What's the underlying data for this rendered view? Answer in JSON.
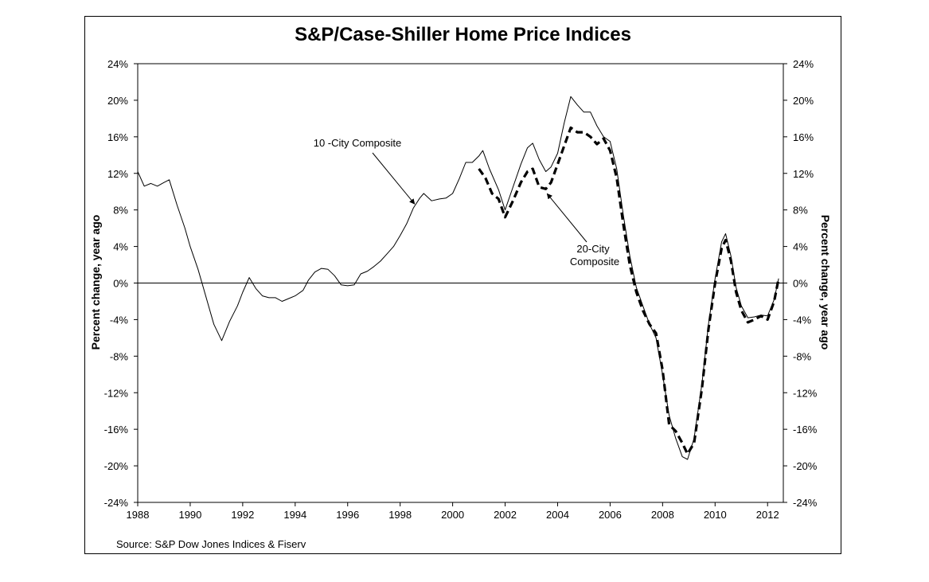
{
  "chart_data": {
    "type": "line",
    "title": "S&P/Case-Shiller Home Price Indices",
    "source": "Source: S&P Dow Jones Indices & Fiserv",
    "ylabel_left": "Percent change, year ago",
    "ylabel_right": "Percent change, year ago",
    "ylim": [
      -24,
      24
    ],
    "xlim": [
      1988,
      2012.6
    ],
    "y_ticks": [
      "24%",
      "20%",
      "16%",
      "12%",
      "8%",
      "4%",
      "0%",
      "-4%",
      "-8%",
      "-12%",
      "-16%",
      "-20%",
      "-24%"
    ],
    "y_tick_values": [
      24,
      20,
      16,
      12,
      8,
      4,
      0,
      -4,
      -8,
      -12,
      -16,
      -20,
      -24
    ],
    "x_ticks": [
      "1988",
      "1990",
      "1992",
      "1994",
      "1996",
      "1998",
      "2000",
      "2002",
      "2004",
      "2006",
      "2008",
      "2010",
      "2012"
    ],
    "x_tick_values": [
      1988,
      1990,
      1992,
      1994,
      1996,
      1998,
      2000,
      2002,
      2004,
      2006,
      2008,
      2010,
      2012
    ],
    "zero_line": true,
    "grid": false,
    "series": [
      {
        "name": "10 -City Composite",
        "style": "solid",
        "color": "#000000",
        "points": [
          [
            1988.0,
            12.2
          ],
          [
            1988.25,
            10.6
          ],
          [
            1988.5,
            10.9
          ],
          [
            1988.75,
            10.6
          ],
          [
            1989.0,
            11.0
          ],
          [
            1989.2,
            11.3
          ],
          [
            1989.5,
            8.5
          ],
          [
            1989.8,
            6.0
          ],
          [
            1990.0,
            4.0
          ],
          [
            1990.3,
            1.5
          ],
          [
            1990.6,
            -1.5
          ],
          [
            1990.9,
            -4.5
          ],
          [
            1991.2,
            -6.3
          ],
          [
            1991.5,
            -4.2
          ],
          [
            1991.8,
            -2.5
          ],
          [
            1992.0,
            -1.0
          ],
          [
            1992.25,
            0.6
          ],
          [
            1992.5,
            -0.6
          ],
          [
            1992.75,
            -1.4
          ],
          [
            1993.0,
            -1.6
          ],
          [
            1993.25,
            -1.6
          ],
          [
            1993.5,
            -2.0
          ],
          [
            1993.75,
            -1.7
          ],
          [
            1994.0,
            -1.4
          ],
          [
            1994.3,
            -0.8
          ],
          [
            1994.5,
            0.3
          ],
          [
            1994.75,
            1.2
          ],
          [
            1995.0,
            1.6
          ],
          [
            1995.25,
            1.5
          ],
          [
            1995.5,
            0.8
          ],
          [
            1995.75,
            -0.2
          ],
          [
            1996.0,
            -0.3
          ],
          [
            1996.25,
            -0.2
          ],
          [
            1996.5,
            1.0
          ],
          [
            1996.75,
            1.3
          ],
          [
            1997.0,
            1.8
          ],
          [
            1997.25,
            2.4
          ],
          [
            1997.5,
            3.2
          ],
          [
            1997.75,
            4.0
          ],
          [
            1998.0,
            5.2
          ],
          [
            1998.25,
            6.5
          ],
          [
            1998.5,
            8.2
          ],
          [
            1998.75,
            9.3
          ],
          [
            1998.9,
            9.8
          ],
          [
            1999.2,
            9.0
          ],
          [
            1999.5,
            9.2
          ],
          [
            1999.75,
            9.3
          ],
          [
            2000.0,
            9.8
          ],
          [
            2000.25,
            11.4
          ],
          [
            2000.5,
            13.2
          ],
          [
            2000.75,
            13.2
          ],
          [
            2001.0,
            13.9
          ],
          [
            2001.15,
            14.5
          ],
          [
            2001.4,
            12.5
          ],
          [
            2001.75,
            10.2
          ],
          [
            2002.0,
            8.0
          ],
          [
            2002.3,
            10.5
          ],
          [
            2002.6,
            13.0
          ],
          [
            2002.85,
            14.8
          ],
          [
            2003.05,
            15.3
          ],
          [
            2003.3,
            13.5
          ],
          [
            2003.55,
            12.2
          ],
          [
            2003.75,
            12.7
          ],
          [
            2004.0,
            14.2
          ],
          [
            2004.25,
            17.5
          ],
          [
            2004.5,
            20.4
          ],
          [
            2004.75,
            19.5
          ],
          [
            2005.0,
            18.7
          ],
          [
            2005.25,
            18.7
          ],
          [
            2005.5,
            17.2
          ],
          [
            2005.75,
            16.0
          ],
          [
            2006.0,
            15.5
          ],
          [
            2006.25,
            12.5
          ],
          [
            2006.5,
            7.5
          ],
          [
            2006.75,
            3.0
          ],
          [
            2007.0,
            -0.5
          ],
          [
            2007.25,
            -2.5
          ],
          [
            2007.5,
            -4.5
          ],
          [
            2007.75,
            -6.0
          ],
          [
            2008.0,
            -10.0
          ],
          [
            2008.25,
            -14.5
          ],
          [
            2008.5,
            -17.0
          ],
          [
            2008.75,
            -19.0
          ],
          [
            2008.95,
            -19.3
          ],
          [
            2009.2,
            -17.0
          ],
          [
            2009.5,
            -11.0
          ],
          [
            2009.75,
            -4.5
          ],
          [
            2010.0,
            0.5
          ],
          [
            2010.25,
            4.5
          ],
          [
            2010.4,
            5.4
          ],
          [
            2010.6,
            3.0
          ],
          [
            2010.8,
            -0.5
          ],
          [
            2011.0,
            -2.5
          ],
          [
            2011.25,
            -3.8
          ],
          [
            2011.5,
            -3.7
          ],
          [
            2011.75,
            -3.5
          ],
          [
            2012.0,
            -3.6
          ],
          [
            2012.25,
            -1.8
          ],
          [
            2012.42,
            0.5
          ]
        ]
      },
      {
        "name": "20-City Composite",
        "style": "dashed",
        "color": "#000000",
        "points": [
          [
            2001.0,
            12.5
          ],
          [
            2001.25,
            11.5
          ],
          [
            2001.5,
            9.8
          ],
          [
            2001.75,
            9.2
          ],
          [
            2002.0,
            7.2
          ],
          [
            2002.3,
            9.0
          ],
          [
            2002.6,
            11.0
          ],
          [
            2002.85,
            12.2
          ],
          [
            2003.05,
            12.5
          ],
          [
            2003.3,
            10.5
          ],
          [
            2003.55,
            10.3
          ],
          [
            2003.75,
            11.0
          ],
          [
            2004.0,
            13.0
          ],
          [
            2004.25,
            15.0
          ],
          [
            2004.5,
            17.0
          ],
          [
            2004.75,
            16.5
          ],
          [
            2005.0,
            16.5
          ],
          [
            2005.25,
            16.0
          ],
          [
            2005.5,
            15.2
          ],
          [
            2005.75,
            15.8
          ],
          [
            2006.0,
            14.5
          ],
          [
            2006.25,
            11.5
          ],
          [
            2006.5,
            6.5
          ],
          [
            2006.75,
            2.0
          ],
          [
            2007.0,
            -1.0
          ],
          [
            2007.25,
            -3.0
          ],
          [
            2007.5,
            -4.5
          ],
          [
            2007.75,
            -5.5
          ],
          [
            2008.0,
            -9.5
          ],
          [
            2008.25,
            -15.5
          ],
          [
            2008.5,
            -16.2
          ],
          [
            2008.75,
            -17.5
          ],
          [
            2008.95,
            -18.7
          ],
          [
            2009.2,
            -17.5
          ],
          [
            2009.5,
            -11.5
          ],
          [
            2009.75,
            -5.0
          ],
          [
            2010.0,
            0.0
          ],
          [
            2010.25,
            3.8
          ],
          [
            2010.4,
            4.7
          ],
          [
            2010.6,
            2.5
          ],
          [
            2010.8,
            -1.0
          ],
          [
            2011.0,
            -3.0
          ],
          [
            2011.25,
            -4.3
          ],
          [
            2011.5,
            -4.0
          ],
          [
            2011.75,
            -3.6
          ],
          [
            2012.0,
            -4.0
          ],
          [
            2012.25,
            -2.0
          ],
          [
            2012.42,
            0.5
          ]
        ]
      }
    ],
    "annotations": [
      {
        "lines": [
          "10 -City Composite"
        ],
        "points_to": "10 -City Composite"
      },
      {
        "lines": [
          "20-City",
          "Composite"
        ],
        "points_to": "20-City Composite"
      }
    ]
  }
}
